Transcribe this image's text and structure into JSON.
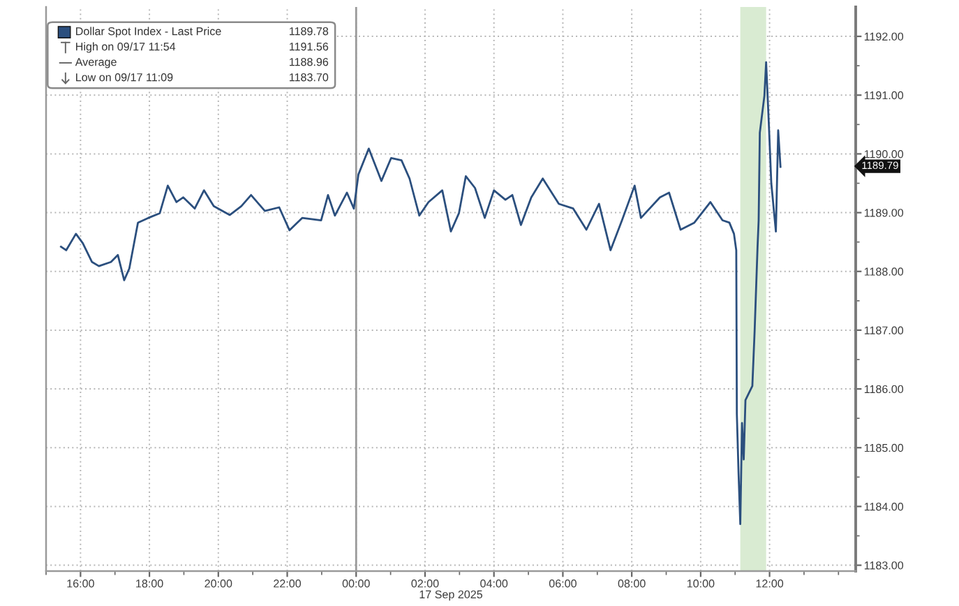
{
  "chart_data": {
    "type": "line",
    "xlabel": "17 Sep 2025",
    "series": [
      {
        "name": "Dollar Spot Index - Last Price",
        "color": "#2b4f7e",
        "x": [
          "2025-09-16T15:26",
          "2025-09-16T15:35",
          "2025-09-16T15:52",
          "2025-09-16T16:04",
          "2025-09-16T16:20",
          "2025-09-16T16:32",
          "2025-09-16T16:53",
          "2025-09-16T17:05",
          "2025-09-16T17:16",
          "2025-09-16T17:25",
          "2025-09-16T17:40",
          "2025-09-16T17:58",
          "2025-09-16T18:18",
          "2025-09-16T18:32",
          "2025-09-16T18:47",
          "2025-09-16T18:59",
          "2025-09-16T19:19",
          "2025-09-16T19:35",
          "2025-09-16T19:52",
          "2025-09-16T20:20",
          "2025-09-16T20:40",
          "2025-09-16T20:57",
          "2025-09-16T21:21",
          "2025-09-16T21:46",
          "2025-09-16T22:04",
          "2025-09-16T22:26",
          "2025-09-16T22:59",
          "2025-09-16T23:11",
          "2025-09-16T23:23",
          "2025-09-16T23:44",
          "2025-09-16T23:56",
          "2025-09-17T00:04",
          "2025-09-17T00:22",
          "2025-09-17T00:44",
          "2025-09-17T01:01",
          "2025-09-17T01:19",
          "2025-09-17T01:33",
          "2025-09-17T01:50",
          "2025-09-17T02:06",
          "2025-09-17T02:30",
          "2025-09-17T02:45",
          "2025-09-17T02:59",
          "2025-09-17T03:11",
          "2025-09-17T03:27",
          "2025-09-17T03:44",
          "2025-09-17T04:00",
          "2025-09-17T04:20",
          "2025-09-17T04:32",
          "2025-09-17T04:47",
          "2025-09-17T05:05",
          "2025-09-17T05:25",
          "2025-09-17T05:53",
          "2025-09-17T06:18",
          "2025-09-17T06:41",
          "2025-09-17T07:03",
          "2025-09-17T07:23",
          "2025-09-17T07:43",
          "2025-09-17T08:05",
          "2025-09-17T08:16",
          "2025-09-17T08:49",
          "2025-09-17T09:05",
          "2025-09-17T09:25",
          "2025-09-17T09:49",
          "2025-09-17T10:17",
          "2025-09-17T10:38",
          "2025-09-17T10:50",
          "2025-09-17T10:58",
          "2025-09-17T11:02",
          "2025-09-17T11:03",
          "2025-09-17T11:06",
          "2025-09-17T11:09",
          "2025-09-17T11:12",
          "2025-09-17T11:15",
          "2025-09-17T11:18",
          "2025-09-17T11:30",
          "2025-09-17T11:34",
          "2025-09-17T11:39",
          "2025-09-17T11:41",
          "2025-09-17T11:43",
          "2025-09-17T11:51",
          "2025-09-17T11:54",
          "2025-09-17T11:59",
          "2025-09-17T12:03",
          "2025-09-17T12:11",
          "2025-09-17T12:15",
          "2025-09-17T12:19"
        ],
        "values": [
          1188.42,
          1188.36,
          1188.64,
          1188.48,
          1188.16,
          1188.09,
          1188.16,
          1188.28,
          1187.85,
          1188.05,
          1188.83,
          1188.91,
          1188.99,
          1189.46,
          1189.18,
          1189.26,
          1189.07,
          1189.38,
          1189.11,
          1188.96,
          1189.11,
          1189.3,
          1189.03,
          1189.09,
          1188.7,
          1188.91,
          1188.87,
          1189.3,
          1188.95,
          1189.34,
          1189.07,
          1189.65,
          1190.09,
          1189.54,
          1189.93,
          1189.89,
          1189.58,
          1188.95,
          1189.18,
          1189.38,
          1188.68,
          1188.99,
          1189.62,
          1189.42,
          1188.91,
          1189.38,
          1189.22,
          1189.3,
          1188.79,
          1189.26,
          1189.58,
          1189.15,
          1189.07,
          1188.71,
          1189.15,
          1188.36,
          1188.87,
          1189.46,
          1188.91,
          1189.26,
          1189.34,
          1188.71,
          1188.83,
          1189.18,
          1188.87,
          1188.83,
          1188.64,
          1188.36,
          1185.58,
          1184.56,
          1183.7,
          1185.42,
          1184.8,
          1185.81,
          1186.05,
          1186.99,
          1188.4,
          1188.87,
          1190.36,
          1190.99,
          1191.56,
          1190.44,
          1189.5,
          1188.68,
          1190.4,
          1189.78
        ]
      }
    ],
    "xlim": [
      "2025-09-16T15:00",
      "2025-09-17T14:30"
    ],
    "xticks": [
      {
        "value": "2025-09-16T16:00",
        "label": "16:00"
      },
      {
        "value": "2025-09-16T18:00",
        "label": "18:00"
      },
      {
        "value": "2025-09-16T20:00",
        "label": "20:00"
      },
      {
        "value": "2025-09-16T22:00",
        "label": "22:00"
      },
      {
        "value": "2025-09-17T00:00",
        "label": "00:00"
      },
      {
        "value": "2025-09-17T02:00",
        "label": "02:00"
      },
      {
        "value": "2025-09-17T04:00",
        "label": "04:00"
      },
      {
        "value": "2025-09-17T06:00",
        "label": "06:00"
      },
      {
        "value": "2025-09-17T08:00",
        "label": "08:00"
      },
      {
        "value": "2025-09-17T10:00",
        "label": "10:00"
      },
      {
        "value": "2025-09-17T12:00",
        "label": "12:00"
      },
      {
        "value": "2025-09-16T15:00",
        "label": null
      },
      {
        "value": "2025-09-16T17:00",
        "label": null
      },
      {
        "value": "2025-09-16T19:00",
        "label": null
      },
      {
        "value": "2025-09-16T21:00",
        "label": null
      },
      {
        "value": "2025-09-16T23:00",
        "label": null
      },
      {
        "value": "2025-09-17T01:00",
        "label": null
      },
      {
        "value": "2025-09-17T03:00",
        "label": null
      },
      {
        "value": "2025-09-17T05:00",
        "label": null
      },
      {
        "value": "2025-09-17T07:00",
        "label": null
      },
      {
        "value": "2025-09-17T09:00",
        "label": null
      },
      {
        "value": "2025-09-17T11:00",
        "label": null
      },
      {
        "value": "2025-09-17T13:00",
        "label": null
      },
      {
        "value": "2025-09-17T14:00",
        "label": null
      }
    ],
    "ylim": [
      1182.9,
      1192.5
    ],
    "yticks": [
      {
        "value": 1183,
        "label": "1183.00"
      },
      {
        "value": 1184,
        "label": "1184.00"
      },
      {
        "value": 1185,
        "label": "1185.00"
      },
      {
        "value": 1186,
        "label": "1186.00"
      },
      {
        "value": 1187,
        "label": "1187.00"
      },
      {
        "value": 1188,
        "label": "1188.00"
      },
      {
        "value": 1189,
        "label": "1189.00"
      },
      {
        "value": 1190,
        "label": "1190.00"
      },
      {
        "value": 1191,
        "label": "1191.00"
      },
      {
        "value": 1192,
        "label": "1192.00"
      },
      {
        "value": 1183.5,
        "label": null
      },
      {
        "value": 1184.5,
        "label": null
      },
      {
        "value": 1185.5,
        "label": null
      },
      {
        "value": 1186.5,
        "label": null
      },
      {
        "value": 1187.5,
        "label": null
      },
      {
        "value": 1188.5,
        "label": null
      },
      {
        "value": 1189.5,
        "label": null
      },
      {
        "value": 1190.5,
        "label": null
      },
      {
        "value": 1191.5,
        "label": null
      }
    ],
    "ref_lines": [
      {
        "axis": "x",
        "value": "2025-09-17T00:00",
        "color": "#9a9a9a",
        "line_style": "solid"
      }
    ],
    "bands": [
      {
        "axis": "x",
        "from": "2025-09-17T11:09",
        "to": "2025-09-17T11:54",
        "color": "#d9ebd2"
      }
    ],
    "annotations": [
      "1189.78",
      "High on 09/17 11:54",
      "1191.56",
      "Average",
      "1188.96",
      "Low on 09/17 11:09",
      "1183.70",
      {
        "text": "1189.79",
        "y": 1189.79
      }
    ],
    "grid": true,
    "legend": "top left"
  }
}
